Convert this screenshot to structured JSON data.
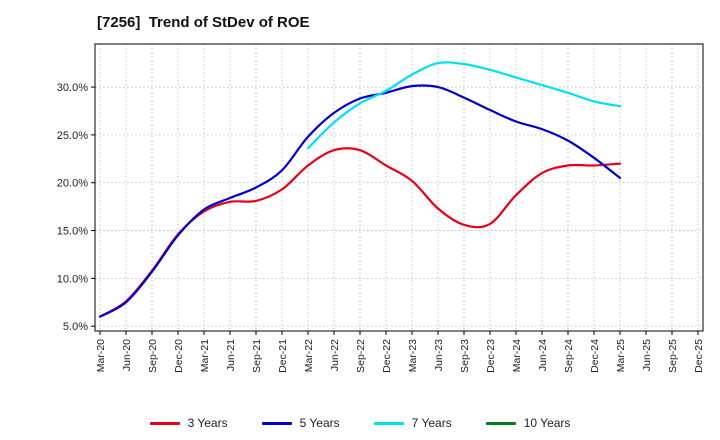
{
  "title": "[7256]  Trend of StDev of ROE",
  "chart_data": {
    "type": "line",
    "x_labels": [
      "Mar-20",
      "Jun-20",
      "Sep-20",
      "Dec-20",
      "Mar-21",
      "Jun-21",
      "Sep-21",
      "Dec-21",
      "Mar-22",
      "Jun-22",
      "Sep-22",
      "Dec-22",
      "Mar-23",
      "Jun-23",
      "Sep-23",
      "Dec-23",
      "Mar-24",
      "Jun-24",
      "Sep-24",
      "Dec-24",
      "Mar-25",
      "Jun-25",
      "Sep-25",
      "Dec-25"
    ],
    "ylabel": "",
    "xlabel": "",
    "ylim": [
      4.5,
      34.5
    ],
    "yticks": [
      5,
      10,
      15,
      20,
      25,
      30
    ],
    "ytick_format": "percent_1dp",
    "grid": "dotted",
    "legend_position": "bottom",
    "series": [
      {
        "name": "3 Years",
        "color": "#e60019",
        "values": [
          6.0,
          7.6,
          10.8,
          14.6,
          17.0,
          18.0,
          18.1,
          19.3,
          21.8,
          23.4,
          23.4,
          21.8,
          20.2,
          17.3,
          15.6,
          15.7,
          18.7,
          21.0,
          21.8,
          21.8,
          22.0,
          null,
          null,
          null
        ]
      },
      {
        "name": "5 Years",
        "color": "#0000cd",
        "values": [
          6.0,
          7.5,
          10.7,
          14.5,
          17.2,
          18.4,
          19.5,
          21.3,
          24.8,
          27.3,
          28.8,
          29.4,
          30.1,
          30.0,
          28.9,
          27.6,
          26.4,
          25.6,
          24.4,
          22.6,
          20.5,
          null,
          null,
          null
        ]
      },
      {
        "name": "7 Years",
        "color": "#00e0ee",
        "values": [
          null,
          null,
          null,
          null,
          null,
          null,
          null,
          null,
          23.6,
          26.3,
          28.3,
          29.6,
          31.3,
          32.5,
          32.4,
          31.8,
          31.0,
          30.2,
          29.4,
          28.5,
          28.0,
          null,
          null,
          null
        ]
      },
      {
        "name": "10 Years",
        "color": "#007a1f",
        "values": [
          null,
          null,
          null,
          null,
          null,
          null,
          null,
          null,
          null,
          null,
          null,
          null,
          null,
          null,
          null,
          null,
          null,
          null,
          null,
          null,
          null,
          null,
          null,
          null
        ]
      }
    ]
  }
}
